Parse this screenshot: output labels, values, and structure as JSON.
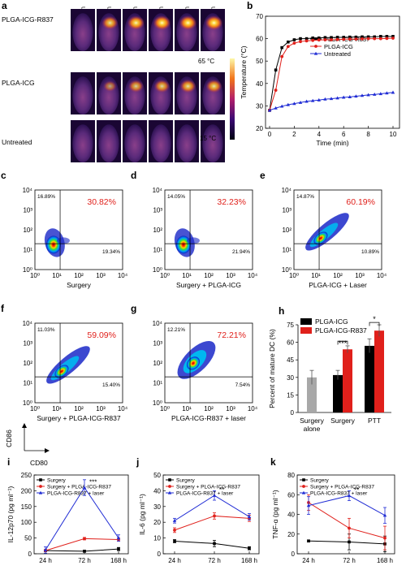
{
  "panel_a": {
    "label": "a",
    "times": [
      "0 min",
      "2 min",
      "4 min",
      "6 min",
      "8 min",
      "10 min"
    ],
    "rows": [
      "PLGA-ICG-R837",
      "PLGA-ICG",
      "Untreated"
    ],
    "colorbar_max": "65 °C",
    "colorbar_min": "15 °C",
    "spot_intensity": [
      [
        0.0,
        0.85,
        0.95,
        1.0,
        1.0,
        1.0
      ],
      [
        0.0,
        0.55,
        0.75,
        0.8,
        0.85,
        0.85
      ],
      [
        0.0,
        0.0,
        0.0,
        0.0,
        0.0,
        0.0
      ]
    ]
  },
  "flow_panels": [
    {
      "label": "c",
      "xlabel": "Surgery",
      "ul": "16.89%",
      "ur": "30.82%",
      "ll": "",
      "lr": "19.34%",
      "shape": "compact"
    },
    {
      "label": "d",
      "xlabel": "Surgery + PLGA-ICG",
      "ul": "14.05%",
      "ur": "32.23%",
      "ll": "",
      "lr": "21.94%",
      "shape": "compact"
    },
    {
      "label": "e",
      "xlabel": "PLGA-ICG + Laser",
      "ul": "14.87%",
      "ur": "60.19%",
      "ll": "",
      "lr": "10.89%",
      "shape": "diagonal"
    },
    {
      "label": "f",
      "xlabel": "Surgery + PLGA-ICG-R837",
      "ul": "11.03%",
      "ur": "59.09%",
      "ll": "",
      "lr": "15.40%",
      "shape": "diagonal"
    },
    {
      "label": "g",
      "xlabel": "PLGA-ICG-R837 + laser",
      "ul": "12.21%",
      "ur": "72.21%",
      "ll": "",
      "lr": "7.54%",
      "shape": "upper"
    }
  ],
  "flow_axes": {
    "ticks": [
      "10⁰",
      "10¹",
      "10²",
      "10³",
      "10⁴"
    ],
    "ylabel": "CD86",
    "xlabel": "CD80"
  },
  "chart_data": [
    {
      "panel": "b",
      "type": "line",
      "xlabel": "Time (min)",
      "ylabel": "Temperature (°C)",
      "xlim": [
        0,
        10
      ],
      "ylim": [
        20,
        70
      ],
      "xticks": [
        0,
        2,
        4,
        6,
        8,
        10
      ],
      "yticks": [
        20,
        30,
        40,
        50,
        60,
        70
      ],
      "x": [
        0,
        0.5,
        1,
        1.5,
        2,
        2.5,
        3,
        3.5,
        4,
        4.5,
        5,
        5.5,
        6,
        6.5,
        7,
        7.5,
        8,
        8.5,
        9,
        9.5,
        10
      ],
      "series": [
        {
          "name": "PLGA-ICG-R837",
          "color": "#000000",
          "marker": "square",
          "values": [
            28,
            46,
            56,
            58.5,
            59.5,
            60,
            60,
            60.3,
            60.3,
            60.5,
            60.5,
            60.6,
            60.6,
            60.7,
            60.7,
            60.8,
            60.8,
            60.8,
            61,
            61,
            61
          ]
        },
        {
          "name": "PLGA-ICG",
          "color": "#e0201b",
          "marker": "circle",
          "values": [
            28,
            37,
            52,
            56.5,
            58,
            58.7,
            59,
            59.2,
            59.4,
            59.5,
            59.5,
            59.6,
            59.7,
            59.8,
            59.8,
            59.9,
            60,
            60,
            60,
            60.1,
            60.2
          ]
        },
        {
          "name": "Untreated",
          "color": "#1f2bd4",
          "marker": "triangle",
          "values": [
            28,
            29,
            29.8,
            30.5,
            31,
            31.5,
            32,
            32.3,
            32.6,
            33,
            33.2,
            33.5,
            33.8,
            34,
            34.3,
            34.6,
            34.9,
            35.1,
            35.4,
            35.7,
            36
          ]
        }
      ]
    },
    {
      "panel": "h",
      "type": "bar",
      "ylabel": "Percent of mature DC (%)",
      "ylim": [
        0,
        75
      ],
      "yticks": [
        0,
        15,
        30,
        45,
        60,
        75
      ],
      "categories": [
        "Surgery alone",
        "Surgery",
        "PTT"
      ],
      "series": [
        {
          "name": "Surgery alone",
          "color": "#a8a8a8",
          "values": [
            30,
            null,
            null
          ],
          "errors": [
            6,
            null,
            null
          ]
        },
        {
          "name": "PLGA-ICG",
          "color": "#000000",
          "values": [
            null,
            32,
            57
          ],
          "errors": [
            null,
            4,
            6
          ]
        },
        {
          "name": "PLGA-ICG-R837",
          "color": "#e0201b",
          "values": [
            null,
            54,
            70
          ],
          "errors": [
            null,
            3,
            5
          ]
        }
      ],
      "annotations": [
        "***",
        "*"
      ]
    },
    {
      "panel": "i",
      "type": "line",
      "ylabel": "IL-12p70 (pg ml⁻¹)",
      "categories": [
        "24 h",
        "72 h",
        "168 h"
      ],
      "ylim": [
        0,
        250
      ],
      "yticks": [
        0,
        50,
        100,
        150,
        200,
        250
      ],
      "series": [
        {
          "name": "Surgery",
          "color": "#000000",
          "values": [
            10,
            8,
            15
          ],
          "errors": [
            3,
            3,
            5
          ]
        },
        {
          "name": "Surgery + PLGA-ICG-R837",
          "color": "#e0201b",
          "values": [
            10,
            48,
            45
          ],
          "errors": [
            3,
            4,
            5
          ]
        },
        {
          "name": "PLGA-ICG-R837 + laser",
          "color": "#1f2bd4",
          "values": [
            12,
            210,
            50
          ],
          "errors": [
            10,
            25,
            10
          ]
        }
      ],
      "annotations": [
        "***"
      ]
    },
    {
      "panel": "j",
      "type": "line",
      "ylabel": "IL-6 (pg ml⁻¹)",
      "categories": [
        "24 h",
        "72 h",
        "168 h"
      ],
      "ylim": [
        0,
        50
      ],
      "yticks": [
        0,
        10,
        20,
        30,
        40,
        50
      ],
      "series": [
        {
          "name": "Surgery",
          "color": "#000000",
          "values": [
            8,
            6.5,
            3.5
          ],
          "errors": [
            1,
            2,
            1
          ]
        },
        {
          "name": "Surgery + PLGA-ICG-R837",
          "color": "#e0201b",
          "values": [
            15,
            24,
            22.5
          ],
          "errors": [
            1.5,
            2,
            2
          ]
        },
        {
          "name": "PLGA-ICG-R837 + laser",
          "color": "#1f2bd4",
          "values": [
            21,
            37,
            23.5
          ],
          "errors": [
            1.5,
            3,
            2
          ]
        }
      ],
      "annotations": [
        "**"
      ]
    },
    {
      "panel": "k",
      "type": "line",
      "ylabel": "TNF-α (pg ml⁻¹)",
      "categories": [
        "24 h",
        "72 h",
        "168 h"
      ],
      "ylim": [
        0,
        80
      ],
      "yticks": [
        0,
        20,
        40,
        60,
        80
      ],
      "series": [
        {
          "name": "Surgery",
          "color": "#000000",
          "values": [
            13,
            12,
            10
          ],
          "errors": [
            1,
            8,
            8
          ]
        },
        {
          "name": "Surgery + PLGA-ICG-R837",
          "color": "#e0201b",
          "values": [
            52,
            26,
            16
          ],
          "errors": [
            8,
            10,
            12
          ]
        },
        {
          "name": "PLGA-ICG-R837 + laser",
          "color": "#1f2bd4",
          "values": [
            49,
            59,
            39
          ],
          "errors": [
            9,
            5,
            8
          ]
        }
      ],
      "annotations": [
        "**"
      ]
    }
  ],
  "labels": {
    "b": "b",
    "h": "h",
    "i": "i",
    "j": "j",
    "k": "k"
  }
}
